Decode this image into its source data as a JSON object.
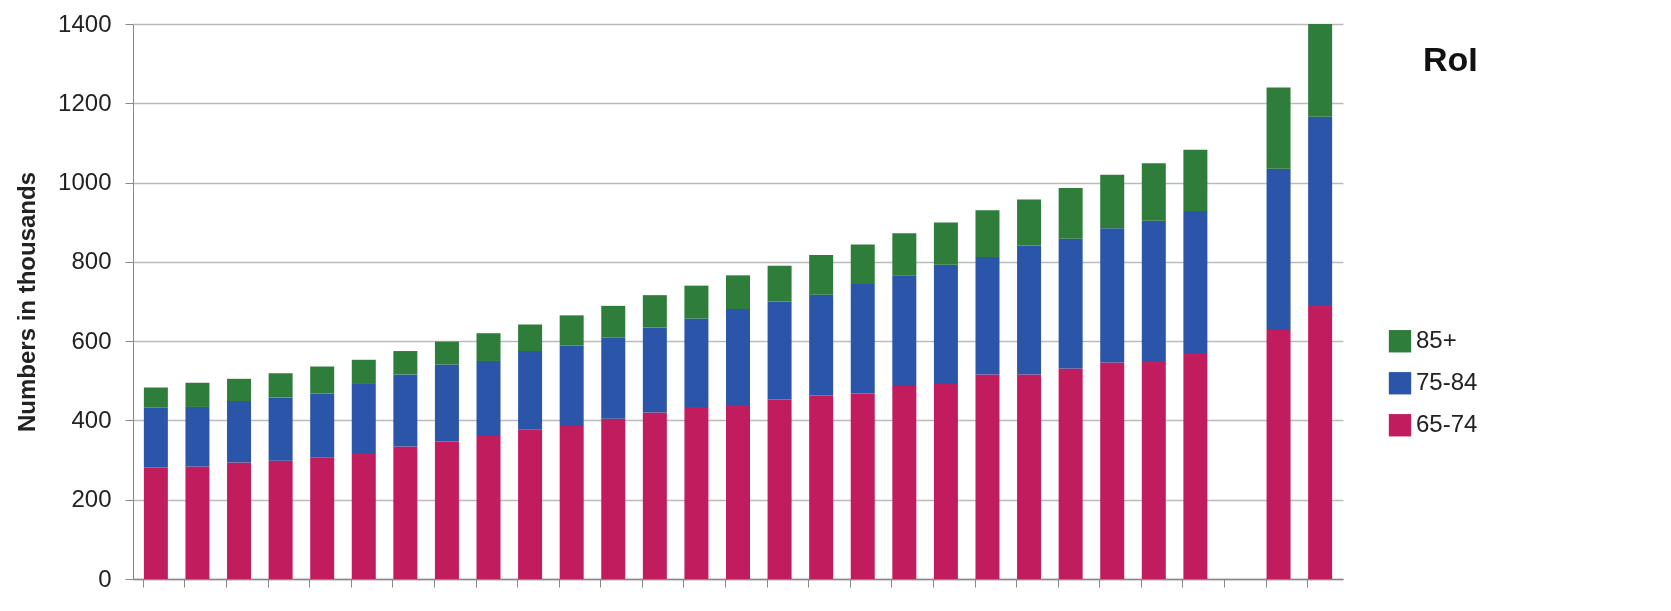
{
  "chart_data": {
    "type": "bar",
    "title": "RoI",
    "ylabel": "Numbers in thousands",
    "stacked": true,
    "categories": [
      null,
      null,
      null,
      null,
      null,
      null,
      null,
      null,
      null,
      null,
      null,
      null,
      null,
      null,
      null,
      null,
      null,
      null,
      null,
      null,
      null,
      null,
      null,
      null,
      null,
      null,
      null,
      null,
      null
    ],
    "series": [
      {
        "name": "65-74",
        "color": "#c01c5e",
        "values": [
          281,
          284,
          294,
          298,
          306,
          318,
          334,
          347,
          361,
          378,
          386,
          404,
          420,
          434,
          439,
          453,
          463,
          468,
          487,
          492,
          516,
          516,
          531,
          546,
          550,
          570,
          null,
          628,
          691
        ]
      },
      {
        "name": "75-84",
        "color": "#2b55a8",
        "values": [
          151,
          150,
          155,
          160,
          162,
          174,
          182,
          194,
          189,
          197,
          203,
          205,
          214,
          223,
          242,
          247,
          254,
          276,
          279,
          301,
          296,
          325,
          327,
          339,
          354,
          358,
          null,
          407,
          475
        ]
      },
      {
        "name": "85+",
        "color": "#2e7d3a",
        "values": [
          51,
          61,
          56,
          61,
          68,
          61,
          59,
          58,
          70,
          67,
          76,
          80,
          82,
          83,
          85,
          90,
          100,
          100,
          106,
          106,
          118,
          116,
          128,
          135,
          145,
          155,
          null,
          205,
          234
        ]
      }
    ],
    "ylim": [
      0,
      1400
    ],
    "yticks": [
      0,
      200,
      400,
      600,
      800,
      1000,
      1200,
      1400
    ],
    "grid": "y",
    "legend": "right",
    "tick_labels": "y"
  }
}
